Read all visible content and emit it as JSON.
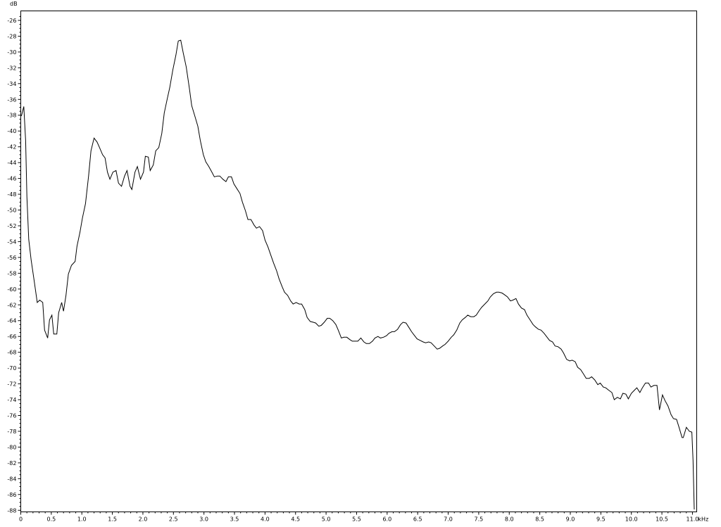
{
  "chart_data": {
    "type": "line",
    "title": "",
    "xlabel": "kHz",
    "ylabel": "dB",
    "xlim": [
      0,
      11.07
    ],
    "ylim": [
      -88.2,
      -24.8
    ],
    "x_ticks": [
      "0",
      "0.5",
      "1.0",
      "1.5",
      "2.0",
      "2.5",
      "3.0",
      "3.5",
      "4.0",
      "4.5",
      "5.0",
      "5.5",
      "6.0",
      "6.5",
      "7.0",
      "7.5",
      "8.0",
      "8.5",
      "9.0",
      "9.5",
      "10.0",
      "10.5",
      "11.0"
    ],
    "y_ticks": [
      -26,
      -28,
      -30,
      -32,
      -34,
      -36,
      -38,
      -40,
      -42,
      -44,
      -46,
      -48,
      -50,
      -52,
      -54,
      -56,
      -58,
      -60,
      -62,
      -64,
      -66,
      -68,
      -70,
      -72,
      -74,
      -76,
      -78,
      -80,
      -82,
      -84,
      -86,
      -88
    ],
    "grid": false,
    "line_color": "#000000",
    "series": [
      {
        "x": [
          0.01,
          0.05,
          0.08,
          0.1,
          0.13,
          0.17,
          0.22,
          0.27,
          0.31,
          0.36,
          0.39,
          0.44,
          0.47,
          0.51,
          0.54,
          0.59,
          0.62,
          0.67,
          0.7,
          0.74,
          0.78,
          0.83,
          0.89,
          0.92,
          0.97,
          1.01,
          1.06,
          1.11,
          1.15,
          1.2,
          1.25,
          1.29,
          1.34,
          1.38,
          1.42,
          1.46,
          1.51,
          1.56,
          1.6,
          1.65,
          1.7,
          1.74,
          1.79,
          1.82,
          1.87,
          1.91,
          1.96,
          2.01,
          2.04,
          2.09,
          2.12,
          2.17,
          2.21,
          2.26,
          2.31,
          2.35,
          2.4,
          2.44,
          2.49,
          2.54,
          2.58,
          2.62,
          2.66,
          2.71,
          2.76,
          2.8,
          2.85,
          2.9,
          2.94,
          2.99,
          3.03,
          3.08,
          3.13,
          3.17,
          3.22,
          3.26,
          3.31,
          3.36,
          3.4,
          3.45,
          3.49,
          3.54,
          3.59,
          3.63,
          3.68,
          3.72,
          3.77,
          3.82,
          3.86,
          3.91,
          3.96,
          4.0,
          4.05,
          4.09,
          4.14,
          4.19,
          4.23,
          4.28,
          4.32,
          4.37,
          4.42,
          4.46,
          4.51,
          4.56,
          4.6,
          4.65,
          4.69,
          4.74,
          4.79,
          4.83,
          4.88,
          4.92,
          4.97,
          5.02,
          5.06,
          5.11,
          5.16,
          5.2,
          5.25,
          5.29,
          5.34,
          5.39,
          5.43,
          5.48,
          5.52,
          5.57,
          5.62,
          5.66,
          5.71,
          5.76,
          5.8,
          5.85,
          5.89,
          5.94,
          5.99,
          6.03,
          6.08,
          6.12,
          6.17,
          6.22,
          6.26,
          6.31,
          6.36,
          6.4,
          6.45,
          6.49,
          6.54,
          6.59,
          6.63,
          6.68,
          6.72,
          6.77,
          6.82,
          6.86,
          6.91,
          6.95,
          7.0,
          7.05,
          7.09,
          7.14,
          7.19,
          7.23,
          7.28,
          7.32,
          7.37,
          7.42,
          7.46,
          7.51,
          7.55,
          7.6,
          7.65,
          7.69,
          7.74,
          7.79,
          7.83,
          7.88,
          7.92,
          7.97,
          8.02,
          8.06,
          8.11,
          8.15,
          8.2,
          8.25,
          8.29,
          8.34,
          8.39,
          8.43,
          8.48,
          8.52,
          8.57,
          8.62,
          8.66,
          8.71,
          8.75,
          8.8,
          8.85,
          8.89,
          8.94,
          8.99,
          9.03,
          9.08,
          9.12,
          9.17,
          9.22,
          9.26,
          9.31,
          9.35,
          9.4,
          9.45,
          9.49,
          9.54,
          9.58,
          9.63,
          9.68,
          9.72,
          9.77,
          9.82,
          9.86,
          9.91,
          9.95,
          10.0,
          10.05,
          10.09,
          10.14,
          10.18,
          10.23,
          10.28,
          10.32,
          10.37,
          10.42,
          10.46,
          10.51,
          10.55,
          10.6,
          10.65,
          10.69,
          10.74,
          10.78,
          10.83,
          10.85,
          10.9,
          10.95,
          10.99,
          11.01,
          11.03
        ],
        "y": [
          -38.1,
          -36.9,
          -41.2,
          -48.3,
          -53.7,
          -56.3,
          -59.0,
          -61.7,
          -61.4,
          -61.7,
          -65.2,
          -66.2,
          -63.9,
          -63.3,
          -65.7,
          -65.7,
          -63.0,
          -61.7,
          -62.8,
          -60.8,
          -58.1,
          -57.0,
          -56.5,
          -54.6,
          -52.8,
          -51.0,
          -49.2,
          -45.7,
          -42.5,
          -40.9,
          -41.4,
          -42.1,
          -43.0,
          -43.4,
          -45.2,
          -46.1,
          -45.2,
          -45.0,
          -46.6,
          -47.0,
          -45.7,
          -45.0,
          -47.0,
          -47.4,
          -45.2,
          -44.5,
          -46.1,
          -45.2,
          -43.2,
          -43.3,
          -45.0,
          -44.3,
          -42.5,
          -42.1,
          -40.3,
          -37.7,
          -35.9,
          -34.5,
          -32.3,
          -30.4,
          -28.6,
          -28.5,
          -30.1,
          -31.9,
          -34.5,
          -36.8,
          -38.1,
          -39.4,
          -41.2,
          -43.0,
          -43.9,
          -44.5,
          -45.2,
          -45.8,
          -45.7,
          -45.7,
          -46.1,
          -46.4,
          -45.8,
          -45.8,
          -46.7,
          -47.3,
          -47.9,
          -49.0,
          -50.1,
          -51.2,
          -51.2,
          -51.9,
          -52.3,
          -52.1,
          -52.6,
          -53.8,
          -54.7,
          -55.6,
          -56.7,
          -57.7,
          -58.7,
          -59.7,
          -60.4,
          -60.8,
          -61.5,
          -61.9,
          -61.7,
          -61.9,
          -61.9,
          -62.6,
          -63.6,
          -64.1,
          -64.2,
          -64.3,
          -64.7,
          -64.6,
          -64.2,
          -63.7,
          -63.7,
          -64.0,
          -64.5,
          -65.2,
          -66.2,
          -66.1,
          -66.1,
          -66.4,
          -66.6,
          -66.6,
          -66.6,
          -66.2,
          -66.7,
          -66.9,
          -66.9,
          -66.6,
          -66.2,
          -66.0,
          -66.2,
          -66.1,
          -65.9,
          -65.6,
          -65.4,
          -65.4,
          -65.1,
          -64.5,
          -64.2,
          -64.3,
          -64.9,
          -65.4,
          -65.9,
          -66.3,
          -66.5,
          -66.7,
          -66.8,
          -66.7,
          -66.8,
          -67.2,
          -67.6,
          -67.5,
          -67.2,
          -67.0,
          -66.6,
          -66.1,
          -65.8,
          -65.2,
          -64.3,
          -63.9,
          -63.6,
          -63.3,
          -63.5,
          -63.5,
          -63.3,
          -62.7,
          -62.3,
          -61.9,
          -61.5,
          -61.0,
          -60.6,
          -60.4,
          -60.4,
          -60.5,
          -60.7,
          -61.0,
          -61.5,
          -61.4,
          -61.2,
          -61.9,
          -62.4,
          -62.6,
          -63.3,
          -63.9,
          -64.5,
          -64.8,
          -65.1,
          -65.2,
          -65.6,
          -66.1,
          -66.5,
          -66.7,
          -67.2,
          -67.3,
          -67.6,
          -68.1,
          -68.9,
          -69.1,
          -69.0,
          -69.2,
          -69.9,
          -70.2,
          -70.8,
          -71.3,
          -71.3,
          -71.1,
          -71.5,
          -72.1,
          -71.9,
          -72.4,
          -72.5,
          -72.8,
          -73.1,
          -74.0,
          -73.7,
          -73.9,
          -73.2,
          -73.3,
          -73.9,
          -73.2,
          -72.8,
          -72.5,
          -73.1,
          -72.5,
          -71.9,
          -71.9,
          -72.4,
          -72.2,
          -72.2,
          -75.3,
          -73.4,
          -74.1,
          -74.8,
          -75.9,
          -76.4,
          -76.5,
          -77.5,
          -78.8,
          -78.8,
          -77.5,
          -78.0,
          -78.1,
          -81.7,
          -87.9
        ]
      }
    ]
  }
}
